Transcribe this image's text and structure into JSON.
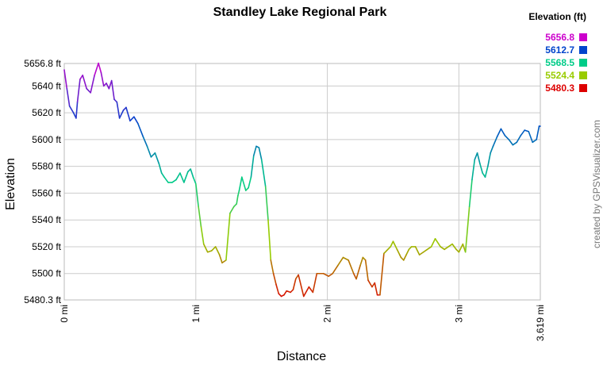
{
  "chart_data": {
    "type": "line",
    "title": "Standley Lake Regional Park",
    "xlabel": "Distance",
    "ylabel": "Elevation",
    "xlim": [
      0,
      3.619
    ],
    "ylim": [
      5480.3,
      5656.8
    ],
    "x_ticks": [
      {
        "value": 0,
        "label": "0 mi"
      },
      {
        "value": 1,
        "label": "1 mi"
      },
      {
        "value": 2,
        "label": "2 mi"
      },
      {
        "value": 3,
        "label": "3 mi"
      },
      {
        "value": 3.619,
        "label": "3.619 mi"
      }
    ],
    "y_ticks": [
      {
        "value": 5480.3,
        "label": "5480.3 ft"
      },
      {
        "value": 5500,
        "label": "5500 ft"
      },
      {
        "value": 5520,
        "label": "5520 ft"
      },
      {
        "value": 5540,
        "label": "5540 ft"
      },
      {
        "value": 5560,
        "label": "5560 ft"
      },
      {
        "value": 5580,
        "label": "5580 ft"
      },
      {
        "value": 5600,
        "label": "5600 ft"
      },
      {
        "value": 5620,
        "label": "5620 ft"
      },
      {
        "value": 5640,
        "label": "5640 ft"
      },
      {
        "value": 5656.8,
        "label": "5656.8 ft"
      }
    ],
    "grid": true,
    "legend": {
      "title": "Elevation (ft)",
      "placement": "top-right",
      "entries": [
        {
          "label": "5656.8",
          "color": "#cc00cc"
        },
        {
          "label": "5612.7",
          "color": "#0044cc"
        },
        {
          "label": "5568.5",
          "color": "#00cc88"
        },
        {
          "label": "5524.4",
          "color": "#99cc00"
        },
        {
          "label": "5480.3",
          "color": "#dd0000"
        }
      ]
    },
    "series": [
      {
        "x": [
          0,
          0.02,
          0.04,
          0.07,
          0.09,
          0.1,
          0.12,
          0.14,
          0.17,
          0.2,
          0.23,
          0.26,
          0.28,
          0.3,
          0.32,
          0.34,
          0.36,
          0.38,
          0.4,
          0.42,
          0.45,
          0.47,
          0.5,
          0.53,
          0.56,
          0.6,
          0.63,
          0.66,
          0.69,
          0.72,
          0.74,
          0.76,
          0.79,
          0.82,
          0.85,
          0.88,
          0.91,
          0.94,
          0.96,
          0.98,
          1.0,
          1.02,
          1.04,
          1.06,
          1.09,
          1.12,
          1.15,
          1.18,
          1.2,
          1.23,
          1.26,
          1.29,
          1.31,
          1.32,
          1.33,
          1.35,
          1.38,
          1.4,
          1.42,
          1.44,
          1.46,
          1.48,
          1.5,
          1.53,
          1.55,
          1.57,
          1.59,
          1.61,
          1.63,
          1.65,
          1.67,
          1.69,
          1.72,
          1.74,
          1.76,
          1.78,
          1.82,
          1.86,
          1.89,
          1.92,
          1.95,
          1.97,
          1.99,
          2.01,
          2.04,
          2.08,
          2.12,
          2.16,
          2.2,
          2.22,
          2.25,
          2.27,
          2.29,
          2.31,
          2.34,
          2.36,
          2.38,
          2.4,
          2.43,
          2.46,
          2.48,
          2.5,
          2.53,
          2.55,
          2.56,
          2.58,
          2.6,
          2.62,
          2.64,
          2.67,
          2.7,
          2.73,
          2.76,
          2.79,
          2.82,
          2.86,
          2.89,
          2.92,
          2.95,
          2.98,
          3.0,
          3.03,
          3.05,
          3.08,
          3.1,
          3.12,
          3.14,
          3.16,
          3.18,
          3.2,
          3.22,
          3.24,
          3.26,
          3.29,
          3.32,
          3.35,
          3.38,
          3.41,
          3.44,
          3.47,
          3.5,
          3.53,
          3.56,
          3.59,
          3.61,
          3.619
        ],
        "y": [
          5652,
          5638,
          5625,
          5620,
          5616,
          5628,
          5645,
          5648,
          5638,
          5635,
          5648,
          5657,
          5650,
          5640,
          5642,
          5638,
          5644,
          5630,
          5628,
          5616,
          5622,
          5624,
          5614,
          5617,
          5612,
          5602,
          5595,
          5587,
          5590,
          5582,
          5575,
          5572,
          5568,
          5568,
          5570,
          5575,
          5568,
          5576,
          5578,
          5572,
          5567,
          5550,
          5535,
          5522,
          5516,
          5517,
          5520,
          5514,
          5508,
          5510,
          5545,
          5550,
          5552,
          5558,
          5562,
          5572,
          5562,
          5564,
          5572,
          5588,
          5595,
          5594,
          5585,
          5565,
          5540,
          5510,
          5500,
          5492,
          5485,
          5483,
          5484,
          5487,
          5486,
          5488,
          5496,
          5499,
          5483,
          5490,
          5486,
          5500,
          5500,
          5500,
          5499,
          5498,
          5500,
          5506,
          5512,
          5510,
          5500,
          5496,
          5506,
          5512,
          5510,
          5495,
          5490,
          5493,
          5484,
          5484,
          5515,
          5518,
          5520,
          5524,
          5518,
          5514,
          5512,
          5510,
          5514,
          5518,
          5520,
          5520,
          5514,
          5516,
          5518,
          5520,
          5526,
          5520,
          5518,
          5520,
          5522,
          5518,
          5516,
          5522,
          5516,
          5550,
          5570,
          5585,
          5590,
          5582,
          5575,
          5572,
          5580,
          5590,
          5595,
          5602,
          5608,
          5603,
          5600,
          5596,
          5598,
          5603,
          5607,
          5606,
          5598,
          5600,
          5610,
          5610
        ]
      }
    ]
  },
  "credit": "created by GPSVisualizer.com"
}
